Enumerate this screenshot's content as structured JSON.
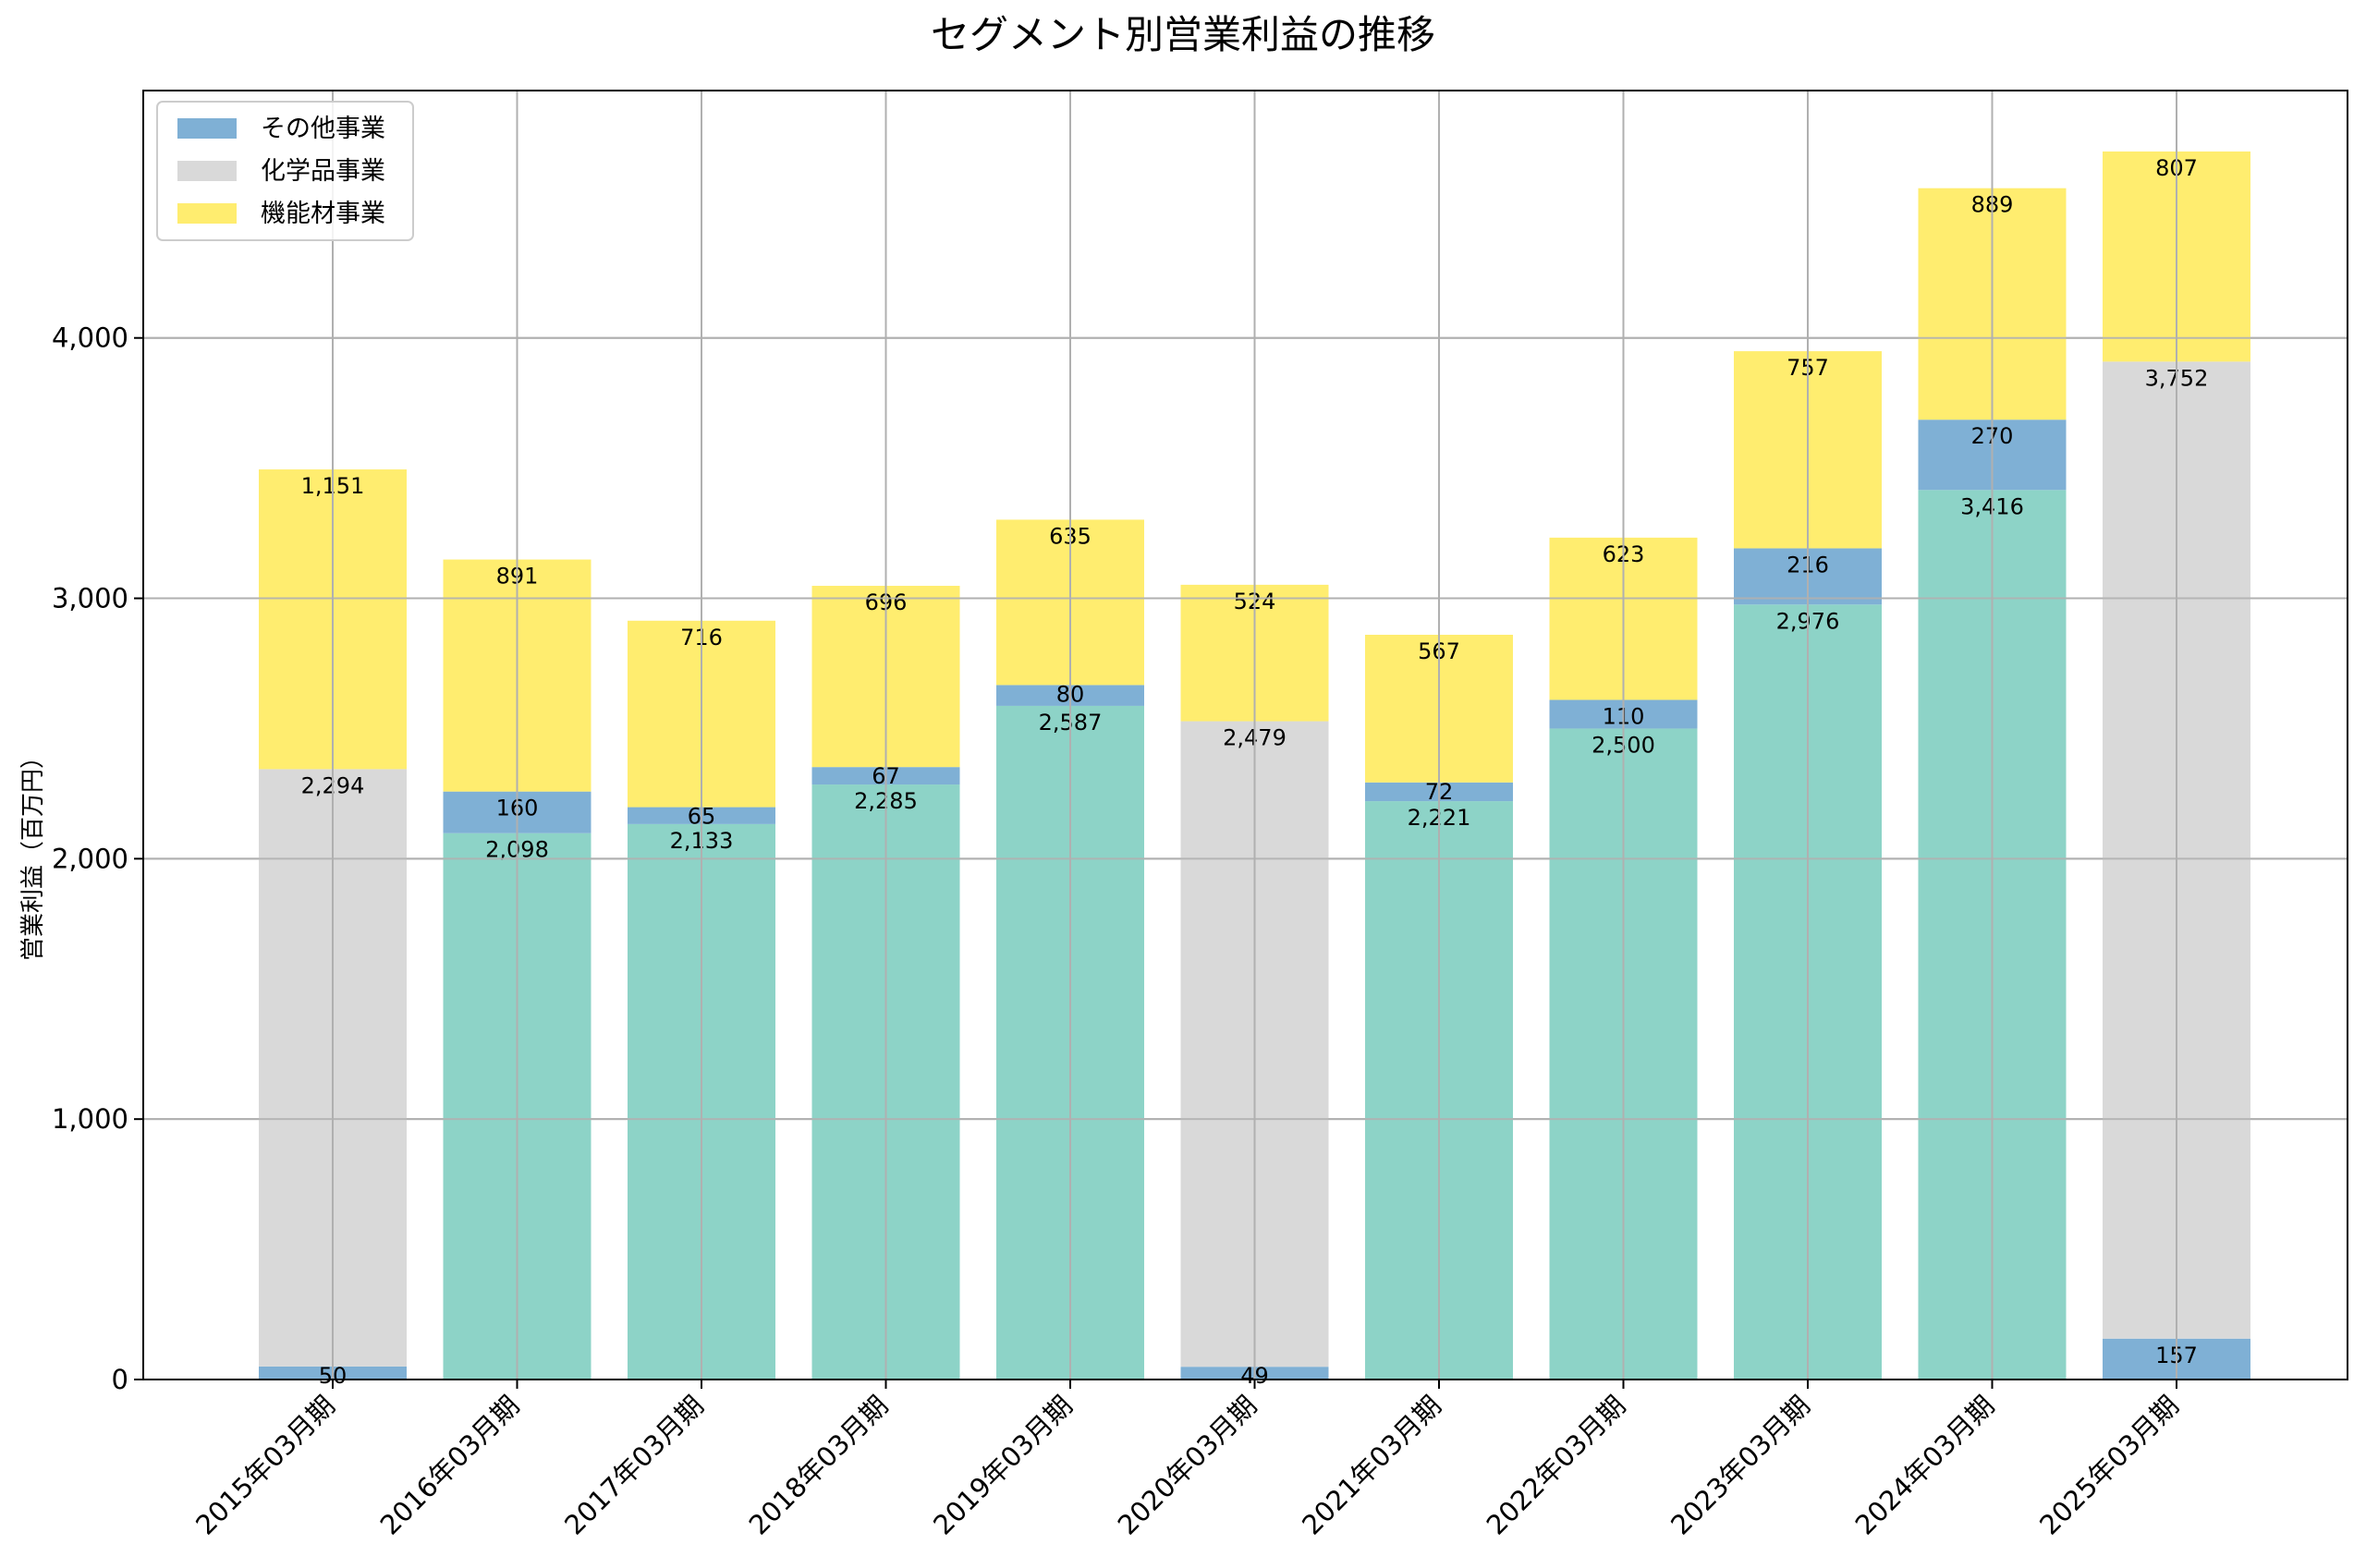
{
  "chart_data": {
    "type": "bar",
    "stacked": true,
    "title": "セグメント別営業利益の推移",
    "xlabel": "",
    "ylabel": "営業利益（百万円）",
    "ylim": [
      0,
      4950
    ],
    "yticks": [
      0,
      1000,
      2000,
      3000,
      4000
    ],
    "ytick_labels": [
      "0",
      "1,000",
      "2,000",
      "3,000",
      "4,000"
    ],
    "grid": true,
    "legend_position": "top-left",
    "categories": [
      "2015年03月期",
      "2016年03月期",
      "2017年03月期",
      "2018年03月期",
      "2019年03月期",
      "2020年03月期",
      "2021年03月期",
      "2022年03月期",
      "2023年03月期",
      "2024年03月期",
      "2025年03月期"
    ],
    "bars": [
      {
        "segments": [
          {
            "series": "その他事業",
            "value": 50
          },
          {
            "series": "化学品事業",
            "value": 2294
          },
          {
            "series": "機能材事業",
            "value": 1151
          }
        ]
      },
      {
        "segments": [
          {
            "series": "base",
            "value": 2098
          },
          {
            "series": "その他事業",
            "value": 160
          },
          {
            "series": "機能材事業",
            "value": 891
          }
        ]
      },
      {
        "segments": [
          {
            "series": "base",
            "value": 2133
          },
          {
            "series": "その他事業",
            "value": 65
          },
          {
            "series": "機能材事業",
            "value": 716
          }
        ]
      },
      {
        "segments": [
          {
            "series": "base",
            "value": 2285
          },
          {
            "series": "その他事業",
            "value": 67
          },
          {
            "series": "機能材事業",
            "value": 696
          }
        ]
      },
      {
        "segments": [
          {
            "series": "base",
            "value": 2587
          },
          {
            "series": "その他事業",
            "value": 80
          },
          {
            "series": "機能材事業",
            "value": 635
          }
        ]
      },
      {
        "segments": [
          {
            "series": "その他事業",
            "value": 49
          },
          {
            "series": "化学品事業",
            "value": 2479
          },
          {
            "series": "機能材事業",
            "value": 524
          }
        ]
      },
      {
        "segments": [
          {
            "series": "base",
            "value": 2221
          },
          {
            "series": "その他事業",
            "value": 72
          },
          {
            "series": "機能材事業",
            "value": 567
          }
        ]
      },
      {
        "segments": [
          {
            "series": "base",
            "value": 2500
          },
          {
            "series": "その他事業",
            "value": 110
          },
          {
            "series": "機能材事業",
            "value": 623
          }
        ]
      },
      {
        "segments": [
          {
            "series": "base",
            "value": 2976
          },
          {
            "series": "化学品事業",
            "value": 0
          },
          {
            "series": "その他事業",
            "value": 216
          },
          {
            "series": "機能材事業",
            "value": 757
          }
        ]
      },
      {
        "segments": [
          {
            "series": "base",
            "value": 3416
          },
          {
            "series": "その他事業",
            "value": 270
          },
          {
            "series": "機能材事業",
            "value": 889
          }
        ]
      },
      {
        "segments": [
          {
            "series": "その他事業",
            "value": 157
          },
          {
            "series": "化学品事業",
            "value": 3752
          },
          {
            "series": "機能材事業",
            "value": 807
          }
        ]
      }
    ],
    "series": [
      {
        "name": "その他事業",
        "color": "#7fb0d5"
      },
      {
        "name": "化学品事業",
        "color": "#d9d9d9"
      },
      {
        "name": "機能材事業",
        "color": "#ffed6f"
      }
    ],
    "base_color": "#8dd3c7"
  }
}
